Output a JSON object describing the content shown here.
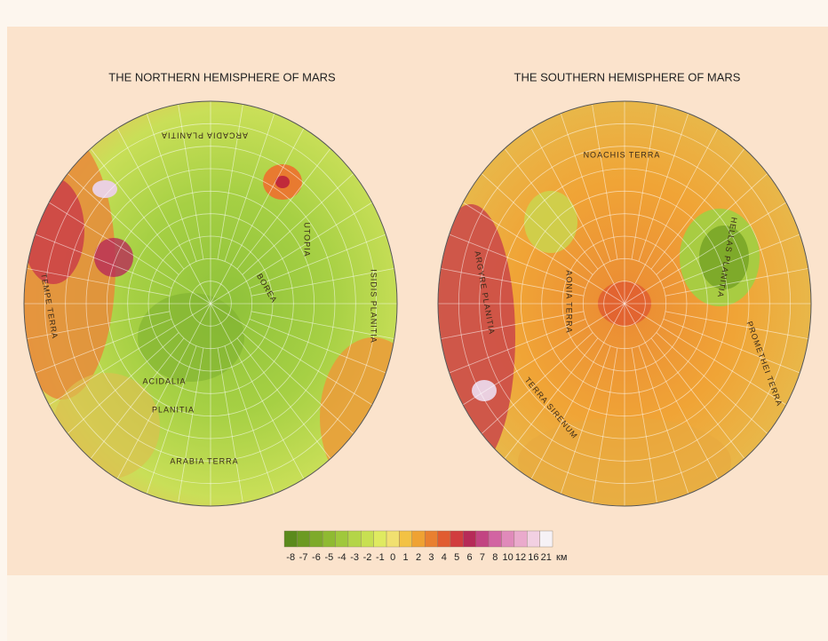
{
  "titles": {
    "north": "THE NORTHERN HEMISPHERE  OF MARS",
    "south": "THE SOUTHERN HEMISPHERE OF MARS"
  },
  "north_labels": [
    "ACIDALIA",
    "PLANITIA",
    "BOREA",
    "ARABIA TERRA",
    "TEMPE TERRA",
    "ARCADIA PLANITIA",
    "UTOPIA",
    "ISIDIS PLANITIA"
  ],
  "south_labels": [
    "HELLAS PLANITIA",
    "ARGYRE PLANITIA",
    "TERRA SIRENUM",
    "NOACHIS TERRA",
    "PROMETHEI TERRA",
    "AONIA TERRA"
  ],
  "legend": {
    "unit": "км",
    "items": [
      {
        "label": "-8",
        "color": "#5b8a1c"
      },
      {
        "label": "-7",
        "color": "#6c9a22"
      },
      {
        "label": "-6",
        "color": "#7eaa2a"
      },
      {
        "label": "-5",
        "color": "#8fba32"
      },
      {
        "label": "-4",
        "color": "#a0c83c"
      },
      {
        "label": "-3",
        "color": "#b4d548"
      },
      {
        "label": "-2",
        "color": "#c8e052"
      },
      {
        "label": "-1",
        "color": "#dfea60"
      },
      {
        "label": "0",
        "color": "#f1e070"
      },
      {
        "label": "1",
        "color": "#f3c244"
      },
      {
        "label": "2",
        "color": "#efa233"
      },
      {
        "label": "3",
        "color": "#e98030"
      },
      {
        "label": "4",
        "color": "#e15c30"
      },
      {
        "label": "5",
        "color": "#d13c3e"
      },
      {
        "label": "6",
        "color": "#b62a58"
      },
      {
        "label": "7",
        "color": "#c24482"
      },
      {
        "label": "8",
        "color": "#d264a2"
      },
      {
        "label": "10",
        "color": "#e08aba"
      },
      {
        "label": "12",
        "color": "#eaaacc"
      },
      {
        "label": "16",
        "color": "#f2d0e2"
      },
      {
        "label": "21",
        "color": "#f6f2f6"
      }
    ]
  }
}
